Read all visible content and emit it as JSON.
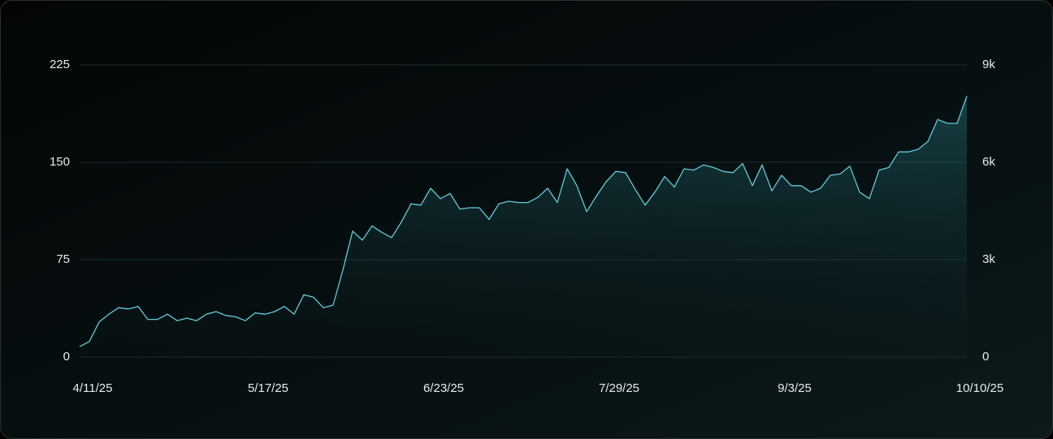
{
  "chart_data": {
    "type": "line",
    "categories": [
      "4/11/25",
      null,
      null,
      null,
      null,
      null,
      null,
      null,
      null,
      null,
      null,
      null,
      null,
      null,
      null,
      null,
      null,
      null,
      "5/17/25",
      null,
      null,
      null,
      null,
      null,
      null,
      null,
      null,
      null,
      null,
      null,
      null,
      null,
      null,
      null,
      null,
      null,
      "6/23/25",
      null,
      null,
      null,
      null,
      null,
      null,
      null,
      null,
      null,
      null,
      null,
      null,
      null,
      null,
      null,
      null,
      null,
      "7/29/25",
      null,
      null,
      null,
      null,
      null,
      null,
      null,
      null,
      null,
      null,
      null,
      null,
      null,
      null,
      null,
      null,
      null,
      "9/3/25",
      null,
      null,
      null,
      null,
      null,
      null,
      null,
      null,
      null,
      null,
      null,
      null,
      null,
      null,
      null,
      null,
      null,
      null,
      "10/10/25"
    ],
    "values": [
      8,
      12,
      27,
      33,
      38,
      37,
      39,
      29,
      29,
      33,
      28,
      30,
      28,
      33,
      35,
      32,
      31,
      28,
      34,
      33,
      35,
      39,
      33,
      48,
      46,
      38,
      40,
      67,
      97,
      90,
      101,
      96,
      92,
      104,
      118,
      117,
      130,
      122,
      126,
      114,
      115,
      115,
      106,
      118,
      120,
      119,
      119,
      123,
      130,
      119,
      145,
      132,
      112,
      124,
      135,
      143,
      142,
      129,
      117,
      127,
      139,
      131,
      145,
      144,
      148,
      146,
      143,
      142,
      149,
      132,
      148,
      128,
      140,
      132,
      132,
      127,
      130,
      140,
      141,
      147,
      127,
      122,
      144,
      146,
      158,
      158,
      160,
      166,
      183,
      180,
      180,
      201
    ],
    "color": "#62cbdb",
    "ylim": [
      0,
      225
    ],
    "yticks": [
      0,
      75,
      150,
      225
    ],
    "y2lim": [
      0,
      9000
    ],
    "y2ticks": [
      {
        "value": 0,
        "label": "0"
      },
      {
        "value": 3000,
        "label": "3k"
      },
      {
        "value": 6000,
        "label": "6k"
      },
      {
        "value": 9000,
        "label": "9k"
      }
    ],
    "grid": true
  }
}
